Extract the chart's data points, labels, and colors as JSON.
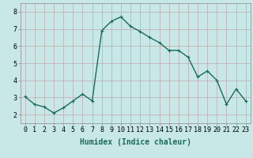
{
  "x": [
    0,
    1,
    2,
    3,
    4,
    5,
    6,
    7,
    8,
    9,
    10,
    11,
    12,
    13,
    14,
    15,
    16,
    17,
    18,
    19,
    20,
    21,
    22,
    23
  ],
  "y": [
    3.05,
    2.6,
    2.45,
    2.1,
    2.4,
    2.8,
    3.2,
    2.8,
    6.9,
    7.45,
    7.7,
    7.15,
    6.85,
    6.5,
    6.2,
    5.75,
    5.75,
    5.35,
    4.2,
    4.55,
    4.0,
    2.6,
    3.5,
    2.8
  ],
  "line_color": "#1a6b5a",
  "marker": "+",
  "marker_size": 3,
  "bg_color": "#c8e8e8",
  "grid_color": "#c0a8a8",
  "xlabel": "Humidex (Indice chaleur)",
  "ylim": [
    1.5,
    8.5
  ],
  "xlim": [
    -0.5,
    23.5
  ],
  "yticks": [
    2,
    3,
    4,
    5,
    6,
    7,
    8
  ],
  "xticks": [
    0,
    1,
    2,
    3,
    4,
    5,
    6,
    7,
    8,
    9,
    10,
    11,
    12,
    13,
    14,
    15,
    16,
    17,
    18,
    19,
    20,
    21,
    22,
    23
  ],
  "xlabel_fontsize": 7,
  "tick_fontsize": 6,
  "line_width": 1.0
}
